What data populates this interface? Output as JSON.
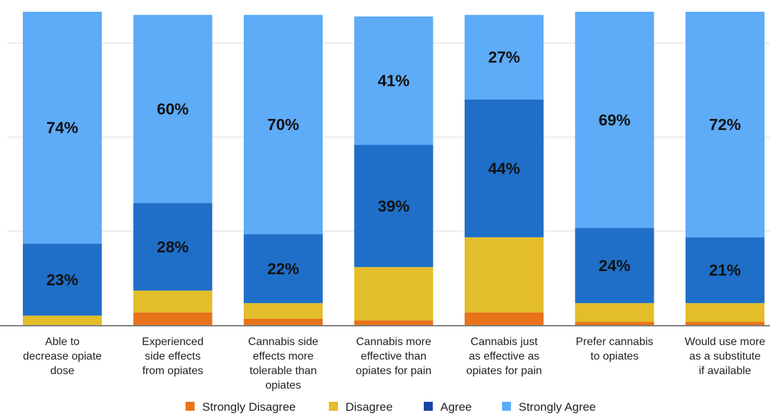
{
  "chart_data": {
    "type": "bar",
    "stacked": true,
    "categories": [
      [
        "Able to",
        "decrease opiate",
        "dose"
      ],
      [
        "Experienced",
        "side effects",
        "from opiates"
      ],
      [
        "Cannabis side",
        "effects more",
        "tolerable than",
        "opiates"
      ],
      [
        "Cannabis more",
        "effective than",
        "opiates for pain"
      ],
      [
        "Cannabis just",
        "as effective as",
        "opiates for pain"
      ],
      [
        "Prefer cannabis",
        "to opiates"
      ],
      [
        "Would use more",
        "as a substitute",
        "if available"
      ]
    ],
    "series": [
      {
        "name": "Strongly Disagree",
        "color": "#e8731a",
        "values": [
          0,
          4,
          2,
          1.5,
          4,
          1,
          1
        ]
      },
      {
        "name": "Disagree",
        "color": "#e3bd2a",
        "values": [
          3,
          7,
          5,
          17,
          24,
          6,
          6
        ]
      },
      {
        "name": "Agree",
        "color": "#1f6fc9",
        "values": [
          23,
          28,
          22,
          39,
          44,
          24,
          21
        ]
      },
      {
        "name": "Strongly Agree",
        "color": "#5eabf7",
        "values": [
          74,
          60,
          70,
          41,
          27,
          69,
          72
        ]
      }
    ],
    "labels": {
      "Agree": [
        "23%",
        "28%",
        "22%",
        "39%",
        "44%",
        "24%",
        "21%"
      ],
      "Strongly Agree": [
        "74%",
        "60%",
        "70%",
        "41%",
        "27%",
        "69%",
        "72%"
      ]
    },
    "legend_swatch_colors": [
      "#e8731a",
      "#e3bd2a",
      "#1646a8",
      "#5eabf7"
    ],
    "legend_position": "bottom",
    "ylim": [
      0,
      100
    ],
    "grid": true
  }
}
